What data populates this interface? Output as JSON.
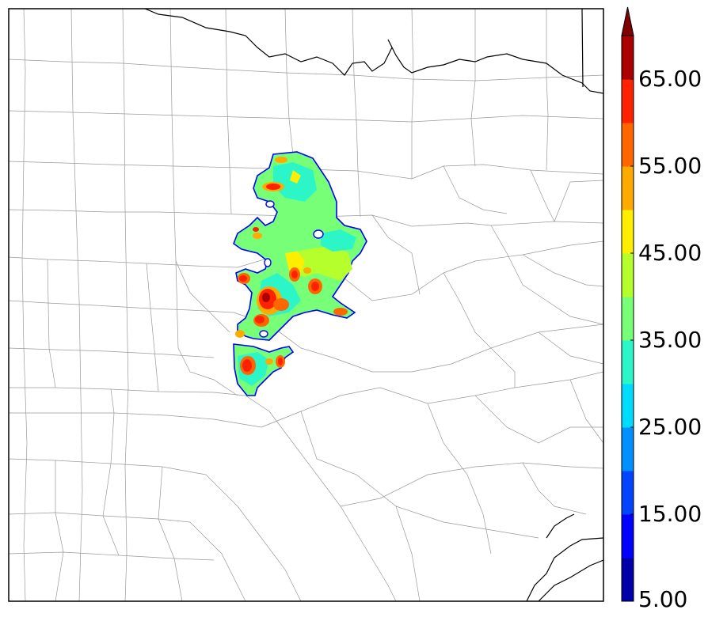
{
  "colorbar": {
    "labels": [
      "65.00",
      "55.00",
      "45.00",
      "35.00",
      "25.00",
      "15.00",
      "5.00"
    ],
    "colors": [
      "#0000a8",
      "#0000ff",
      "#0044ff",
      "#0090ff",
      "#00dcff",
      "#2cf5c8",
      "#78ff78",
      "#b4ff2c",
      "#ffee00",
      "#ffaa00",
      "#ff6600",
      "#ff2200",
      "#aa0000"
    ],
    "extend_color": "#800000"
  },
  "map": {
    "boundary_color": "#000000",
    "county_line_color": "#999999",
    "radar_outline_color": "#0000ff"
  }
}
